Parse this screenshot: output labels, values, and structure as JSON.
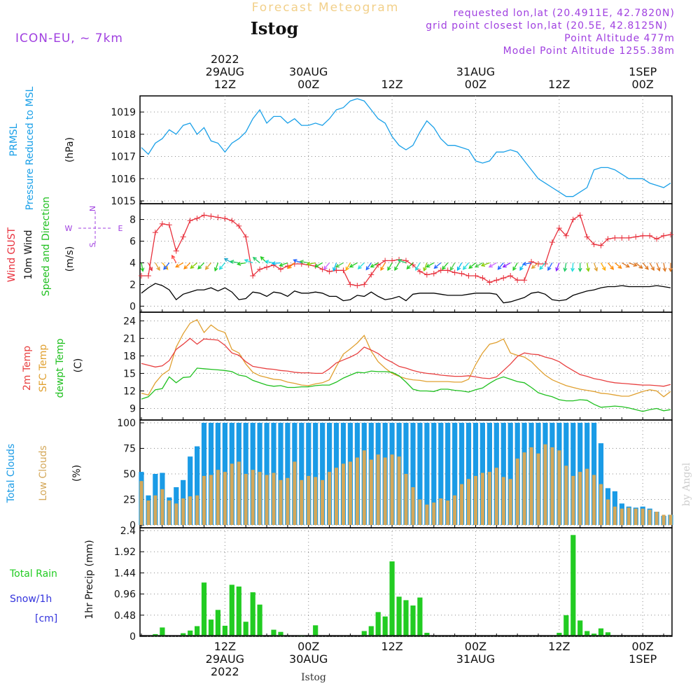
{
  "header": {
    "title": "Forecast Meteogram",
    "location": "Istog",
    "model": "ICON-EU, ~ 7km",
    "requested": "requested lon,lat (20.4911E, 42.7820N)",
    "grid_point": "grid point closest lon,lat (20.5E, 42.8125N)",
    "point_altitude": "Point Altitude 477m",
    "model_altitude": "Model Point Altitude 1255.38m",
    "footer_location": "Istog",
    "watermark": "by Angel"
  },
  "time_axis": {
    "top_labels": [
      {
        "t": 12,
        "lines": [
          "2022",
          "29AUG",
          "12Z"
        ]
      },
      {
        "t": 24,
        "lines": [
          "30AUG",
          "00Z"
        ]
      },
      {
        "t": 36,
        "lines": [
          "12Z"
        ]
      },
      {
        "t": 48,
        "lines": [
          "31AUG",
          "00Z"
        ]
      },
      {
        "t": 60,
        "lines": [
          "12Z"
        ]
      },
      {
        "t": 72,
        "lines": [
          "1SEP",
          "00Z"
        ]
      }
    ],
    "bottom_labels": [
      {
        "t": 12,
        "lines": [
          "12Z",
          "29AUG",
          "2022"
        ]
      },
      {
        "t": 24,
        "lines": [
          "00Z",
          "30AUG"
        ]
      },
      {
        "t": 36,
        "lines": [
          "12Z"
        ]
      },
      {
        "t": 48,
        "lines": [
          "00Z",
          "31AUG"
        ]
      },
      {
        "t": 60,
        "lines": [
          "12Z"
        ]
      },
      {
        "t": 72,
        "lines": [
          "00Z",
          "1SEP"
        ]
      }
    ]
  },
  "colors": {
    "pressure": "#1aa0e8",
    "gust": "#e8303c",
    "wind": "#000000",
    "temp2m": "#e84040",
    "sfc": "#e0a030",
    "dewpt": "#20c020",
    "total_clouds": "#1a9be6",
    "low_clouds": "#d4a85a",
    "rain": "#22cc22",
    "snow": "#3333dd",
    "purple": "#a040e0"
  },
  "chart_data": [
    {
      "type": "line",
      "name": "pressure",
      "label_lines": [
        "PRMSL",
        "Pressure Reduced to MSL"
      ],
      "unit": "(hPa)",
      "yticks": [
        "1015",
        "1016",
        "1017",
        "1018",
        "1019"
      ],
      "ylim": [
        1015,
        1019.6
      ],
      "x": [
        0,
        1,
        2,
        3,
        4,
        5,
        6,
        7,
        8,
        9,
        10,
        11,
        12,
        13,
        14,
        15,
        16,
        17,
        18,
        19,
        20,
        21,
        22,
        23,
        24,
        25,
        26,
        27,
        28,
        29,
        30,
        31,
        32,
        33,
        34,
        35,
        36,
        37,
        38,
        39,
        40,
        41,
        42,
        43,
        44,
        45,
        46,
        47,
        48,
        49,
        50,
        51,
        52,
        53,
        54,
        55,
        56,
        57,
        58,
        59,
        60,
        61,
        62,
        63,
        64,
        65,
        66,
        67,
        68,
        69,
        70,
        71,
        72,
        73,
        74,
        75,
        76
      ],
      "values": [
        1017.4,
        1017.1,
        1017.6,
        1017.8,
        1018.2,
        1018.0,
        1018.4,
        1018.5,
        1018.0,
        1018.3,
        1017.7,
        1017.6,
        1017.2,
        1017.6,
        1017.8,
        1018.1,
        1018.7,
        1019.1,
        1018.5,
        1018.8,
        1018.8,
        1018.5,
        1018.7,
        1018.4,
        1018.4,
        1018.5,
        1018.4,
        1018.7,
        1019.1,
        1019.2,
        1019.5,
        1019.6,
        1019.5,
        1019.1,
        1018.7,
        1018.5,
        1017.9,
        1017.5,
        1017.3,
        1017.5,
        1018.1,
        1018.6,
        1018.3,
        1017.8,
        1017.5,
        1017.5,
        1017.4,
        1017.3,
        1016.8,
        1016.7,
        1016.8,
        1017.2,
        1017.2,
        1017.3,
        1017.2,
        1016.8,
        1016.4,
        1016.0,
        1015.8,
        1015.6,
        1015.4,
        1015.2,
        1015.2,
        1015.4,
        1015.6,
        1016.4,
        1016.5,
        1016.5,
        1016.4,
        1016.2,
        1016.0,
        1016.0,
        1016.0,
        1015.8,
        1015.7,
        1015.6,
        1015.8
      ]
    },
    {
      "type": "line",
      "name": "wind",
      "label_lines": [
        "Wind GUST",
        "10m Wind",
        "Speed and Direction"
      ],
      "unit": "(m/s)",
      "compass": {
        "n": "N",
        "s": "S",
        "w": "W",
        "e": "E"
      },
      "yticks": [
        "0",
        "2",
        "4",
        "6",
        "8"
      ],
      "ylim": [
        -0.3,
        9.2
      ],
      "series": [
        {
          "name": "gust",
          "values": [
            2.8,
            2.8,
            6.8,
            7.6,
            7.5,
            5.1,
            6.4,
            7.9,
            8.1,
            8.4,
            8.3,
            8.2,
            8.1,
            7.9,
            7.4,
            6.4,
            2.8,
            3.4,
            3.6,
            3.8,
            3.4,
            3.7,
            3.9,
            3.9,
            3.8,
            3.7,
            3.4,
            3.2,
            3.3,
            3.3,
            2.0,
            1.9,
            2.0,
            2.9,
            3.8,
            4.2,
            4.2,
            4.3,
            4.2,
            3.8,
            3.2,
            2.9,
            3.0,
            3.3,
            3.3,
            3.1,
            3.0,
            2.8,
            2.8,
            2.6,
            2.2,
            2.4,
            2.6,
            2.8,
            2.4,
            2.4,
            4.1,
            3.9,
            3.9,
            5.9,
            7.2,
            6.5,
            8.0,
            8.4,
            6.4,
            5.7,
            5.6,
            6.2,
            6.3,
            6.3,
            6.3,
            6.4,
            6.5,
            6.5,
            6.2,
            6.5,
            6.6
          ]
        },
        {
          "name": "wind10m",
          "values": [
            1.2,
            1.7,
            2.1,
            1.9,
            1.5,
            0.6,
            1.1,
            1.3,
            1.5,
            1.5,
            1.7,
            1.4,
            1.7,
            1.3,
            0.6,
            0.7,
            1.3,
            1.2,
            0.9,
            1.3,
            1.2,
            0.9,
            1.4,
            1.2,
            1.2,
            1.3,
            1.2,
            0.9,
            0.9,
            0.5,
            0.6,
            1.0,
            0.9,
            1.3,
            0.9,
            0.6,
            0.7,
            0.9,
            0.5,
            1.1,
            1.2,
            1.2,
            1.2,
            1.1,
            1.0,
            1.0,
            1.0,
            1.1,
            1.2,
            1.2,
            1.2,
            1.1,
            0.3,
            0.4,
            0.6,
            0.8,
            1.2,
            1.3,
            1.1,
            0.6,
            0.5,
            0.6,
            1.0,
            1.2,
            1.4,
            1.5,
            1.7,
            1.8,
            1.8,
            1.9,
            1.8,
            1.8,
            1.8,
            1.8,
            1.9,
            1.8,
            1.7
          ]
        }
      ],
      "arrow_dirs": [
        10,
        25,
        30,
        40,
        320,
        210,
        300,
        315,
        310,
        315,
        320,
        340,
        320,
        240,
        260,
        280,
        250,
        230,
        225,
        260,
        275,
        290,
        310,
        250,
        260,
        280,
        300,
        320,
        340,
        300,
        330,
        300,
        315,
        325,
        300,
        330,
        330,
        330,
        250,
        315,
        330,
        340,
        300,
        310,
        320,
        330,
        330,
        320,
        310,
        300,
        290,
        300,
        320,
        300,
        330,
        330,
        280,
        310,
        320,
        330,
        340,
        350,
        355,
        0,
        10,
        20,
        30,
        40,
        50,
        60,
        70,
        50,
        40,
        30,
        20,
        10,
        0
      ],
      "arrow_colors": [
        "#22cc22",
        "#e8303c",
        "#e0a030",
        "#ffaa00",
        "#2266ff",
        "#ff4444",
        "#ff8800",
        "#ff8800",
        "#88cc00",
        "#22cc22",
        "#e0a030",
        "#22cc22",
        "#22dddd",
        "#22aacc",
        "#22cc66",
        "#22cc22",
        "#22dddd",
        "#22cc66",
        "#22cc22",
        "#22dddd",
        "#00bbee",
        "#22cc22",
        "#ff8800",
        "#2266ff",
        "#44cc44",
        "#88cc00",
        "#22cc22",
        "#cc66ff",
        "#00bbee",
        "#44cc44",
        "#ffaa00",
        "#22cc22",
        "#22dddd",
        "#2266ff",
        "#22cc22",
        "#ff8800",
        "#22cc22",
        "#22cc22",
        "#22cc66",
        "#22cc22",
        "#22dddd",
        "#88cc00",
        "#22cc22",
        "#2266ff",
        "#22cc22",
        "#44cc44",
        "#00bbee",
        "#22dddd",
        "#22cc22",
        "#44cc44",
        "#88cc00",
        "#cc66ff",
        "#2266ff",
        "#8822ff",
        "#22cc22",
        "#00bbee",
        "#2266ff",
        "#e0a030",
        "#22dddd",
        "#2266ff",
        "#8822ff",
        "#22cc66",
        "#22dddd",
        "#22cc66",
        "#88cc00",
        "#e0a030",
        "#ffaa00",
        "#ff8800",
        "#ff8800",
        "#dd7722",
        "#dd7722",
        "#dd7722",
        "#dd7722",
        "#dd7722",
        "#dd7722",
        "#dd7722",
        "#dd7722"
      ]
    },
    {
      "type": "line",
      "name": "temperature",
      "label_lines": [
        "2m Temp",
        "SFC Temp",
        "dewpt Temp"
      ],
      "unit": "(C)",
      "yticks": [
        "9",
        "12",
        "15",
        "18",
        "21",
        "24"
      ],
      "ylim": [
        7.5,
        25
      ],
      "series": [
        {
          "name": "2m Temp",
          "values": [
            16.7,
            16.4,
            16.1,
            16.3,
            17.2,
            19.1,
            20.0,
            21.0,
            20.0,
            20.9,
            20.8,
            20.7,
            19.8,
            18.5,
            18.1,
            17.0,
            16.2,
            16.0,
            15.8,
            15.7,
            15.5,
            15.4,
            15.2,
            15.1,
            15.1,
            15.0,
            15.0,
            15.8,
            16.8,
            17.3,
            17.8,
            18.4,
            19.5,
            19.0,
            18.4,
            17.5,
            16.9,
            16.2,
            15.9,
            15.5,
            15.2,
            15.0,
            14.9,
            14.7,
            14.6,
            14.5,
            14.5,
            14.6,
            14.4,
            14.2,
            14.1,
            14.4,
            15.5,
            16.6,
            17.9,
            18.5,
            18.3,
            18.2,
            17.8,
            17.5,
            17.0,
            16.2,
            15.5,
            14.8,
            14.5,
            14.1,
            13.9,
            13.6,
            13.4,
            13.3,
            13.2,
            13.1,
            13.0,
            13.0,
            12.9,
            12.8,
            13.1
          ]
        },
        {
          "name": "SFC Temp",
          "values": [
            11.6,
            11.3,
            13.4,
            14.8,
            15.6,
            19.5,
            21.8,
            23.6,
            24.2,
            22.0,
            23.3,
            22.4,
            22.0,
            19.1,
            18.5,
            16.6,
            15.2,
            14.6,
            14.3,
            14.0,
            13.9,
            13.5,
            13.3,
            13.0,
            12.9,
            13.2,
            13.4,
            13.9,
            16.2,
            18.3,
            19.2,
            20.2,
            21.5,
            18.8,
            17.0,
            15.9,
            15.0,
            14.5,
            14.1,
            13.9,
            13.8,
            13.6,
            13.6,
            13.6,
            13.6,
            13.5,
            13.5,
            14.0,
            16.5,
            18.5,
            20.0,
            20.3,
            20.9,
            18.5,
            18.1,
            17.8,
            17.0,
            15.8,
            14.7,
            13.9,
            13.4,
            12.9,
            12.6,
            12.3,
            12.1,
            11.9,
            11.6,
            11.5,
            11.3,
            11.1,
            11.1,
            11.5,
            11.9,
            12.2,
            12.0,
            11.0,
            11.9
          ]
        },
        {
          "name": "dewpt Temp",
          "values": [
            10.6,
            11.0,
            12.2,
            12.4,
            14.4,
            13.4,
            14.3,
            14.4,
            15.9,
            15.8,
            15.7,
            15.6,
            15.5,
            15.3,
            14.7,
            14.5,
            13.8,
            13.4,
            13.0,
            12.8,
            12.9,
            12.6,
            12.6,
            12.7,
            12.7,
            12.9,
            13.0,
            13.0,
            13.5,
            14.2,
            14.7,
            15.2,
            15.1,
            15.4,
            15.3,
            15.3,
            15.2,
            14.6,
            13.5,
            12.3,
            12.0,
            12.0,
            11.9,
            12.3,
            12.3,
            12.1,
            12.0,
            11.8,
            12.2,
            12.5,
            13.3,
            14.0,
            14.4,
            14.0,
            13.6,
            13.4,
            12.6,
            11.7,
            11.3,
            11.0,
            10.5,
            10.3,
            10.3,
            10.5,
            10.4,
            9.7,
            9.2,
            9.3,
            9.4,
            9.3,
            9.1,
            8.8,
            8.5,
            8.8,
            9.0,
            8.6,
            8.8
          ]
        }
      ]
    },
    {
      "type": "bar",
      "name": "clouds",
      "label_lines": [
        "Total Clouds",
        "Low Clouds"
      ],
      "unit": "(%)",
      "yticks": [
        "0",
        "25",
        "50",
        "75",
        "100"
      ],
      "ylim": [
        0,
        100
      ],
      "series": [
        {
          "name": "Total Clouds",
          "values": [
            52,
            29,
            50,
            51,
            27,
            37,
            44,
            67,
            77,
            100,
            100,
            100,
            100,
            100,
            100,
            100,
            100,
            100,
            100,
            100,
            100,
            100,
            100,
            100,
            100,
            100,
            100,
            100,
            100,
            100,
            100,
            100,
            100,
            100,
            100,
            100,
            100,
            100,
            100,
            100,
            100,
            100,
            100,
            100,
            100,
            100,
            100,
            100,
            100,
            100,
            100,
            100,
            100,
            100,
            100,
            100,
            100,
            100,
            100,
            100,
            100,
            100,
            100,
            100,
            100,
            100,
            80,
            36,
            33,
            21,
            18,
            17,
            18,
            16,
            13,
            9,
            10
          ]
        },
        {
          "name": "Low Clouds",
          "values": [
            43,
            24,
            29,
            35,
            24,
            21,
            26,
            28,
            29,
            48,
            49,
            54,
            52,
            60,
            62,
            50,
            54,
            52,
            49,
            51,
            44,
            46,
            62,
            44,
            48,
            47,
            44,
            52,
            56,
            60,
            62,
            66,
            73,
            64,
            69,
            66,
            69,
            67,
            50,
            37,
            25,
            20,
            22,
            26,
            24,
            29,
            40,
            45,
            48,
            51,
            52,
            56,
            47,
            45,
            65,
            71,
            76,
            70,
            79,
            76,
            73,
            58,
            48,
            52,
            55,
            49,
            40,
            25,
            18,
            16,
            17,
            16,
            16,
            15,
            13,
            10,
            10
          ]
        }
      ]
    },
    {
      "type": "bar",
      "name": "precip",
      "label_lines": [
        "1hr Precip (mm)"
      ],
      "left_labels": {
        "rain": "Total   Rain",
        "snow": "Snow/1h",
        "snow_unit": "[cm]"
      },
      "yticks": [
        "0",
        "0.48",
        "0.96",
        "1.44",
        "1.92",
        "2.4"
      ],
      "ylim": [
        0,
        2.4
      ],
      "values": [
        0,
        0,
        0.05,
        0.2,
        0,
        0,
        0.07,
        0.13,
        0.23,
        1.22,
        0.38,
        0.6,
        0.24,
        1.17,
        1.13,
        0.33,
        1.0,
        0.72,
        0,
        0.15,
        0.1,
        0,
        0,
        0.01,
        0,
        0.25,
        0,
        0,
        0,
        0,
        0,
        0,
        0.12,
        0.23,
        0.55,
        0.45,
        1.7,
        0.9,
        0.82,
        0.7,
        0.88,
        0.08,
        0,
        0,
        0,
        0,
        0,
        0,
        0,
        0,
        0,
        0,
        0,
        0,
        0,
        0,
        0,
        0,
        0,
        0,
        0.08,
        0.48,
        2.3,
        0.36,
        0.12,
        0.06,
        0.18,
        0.09,
        0,
        0,
        0,
        0,
        0,
        0,
        0,
        0,
        0
      ]
    }
  ]
}
